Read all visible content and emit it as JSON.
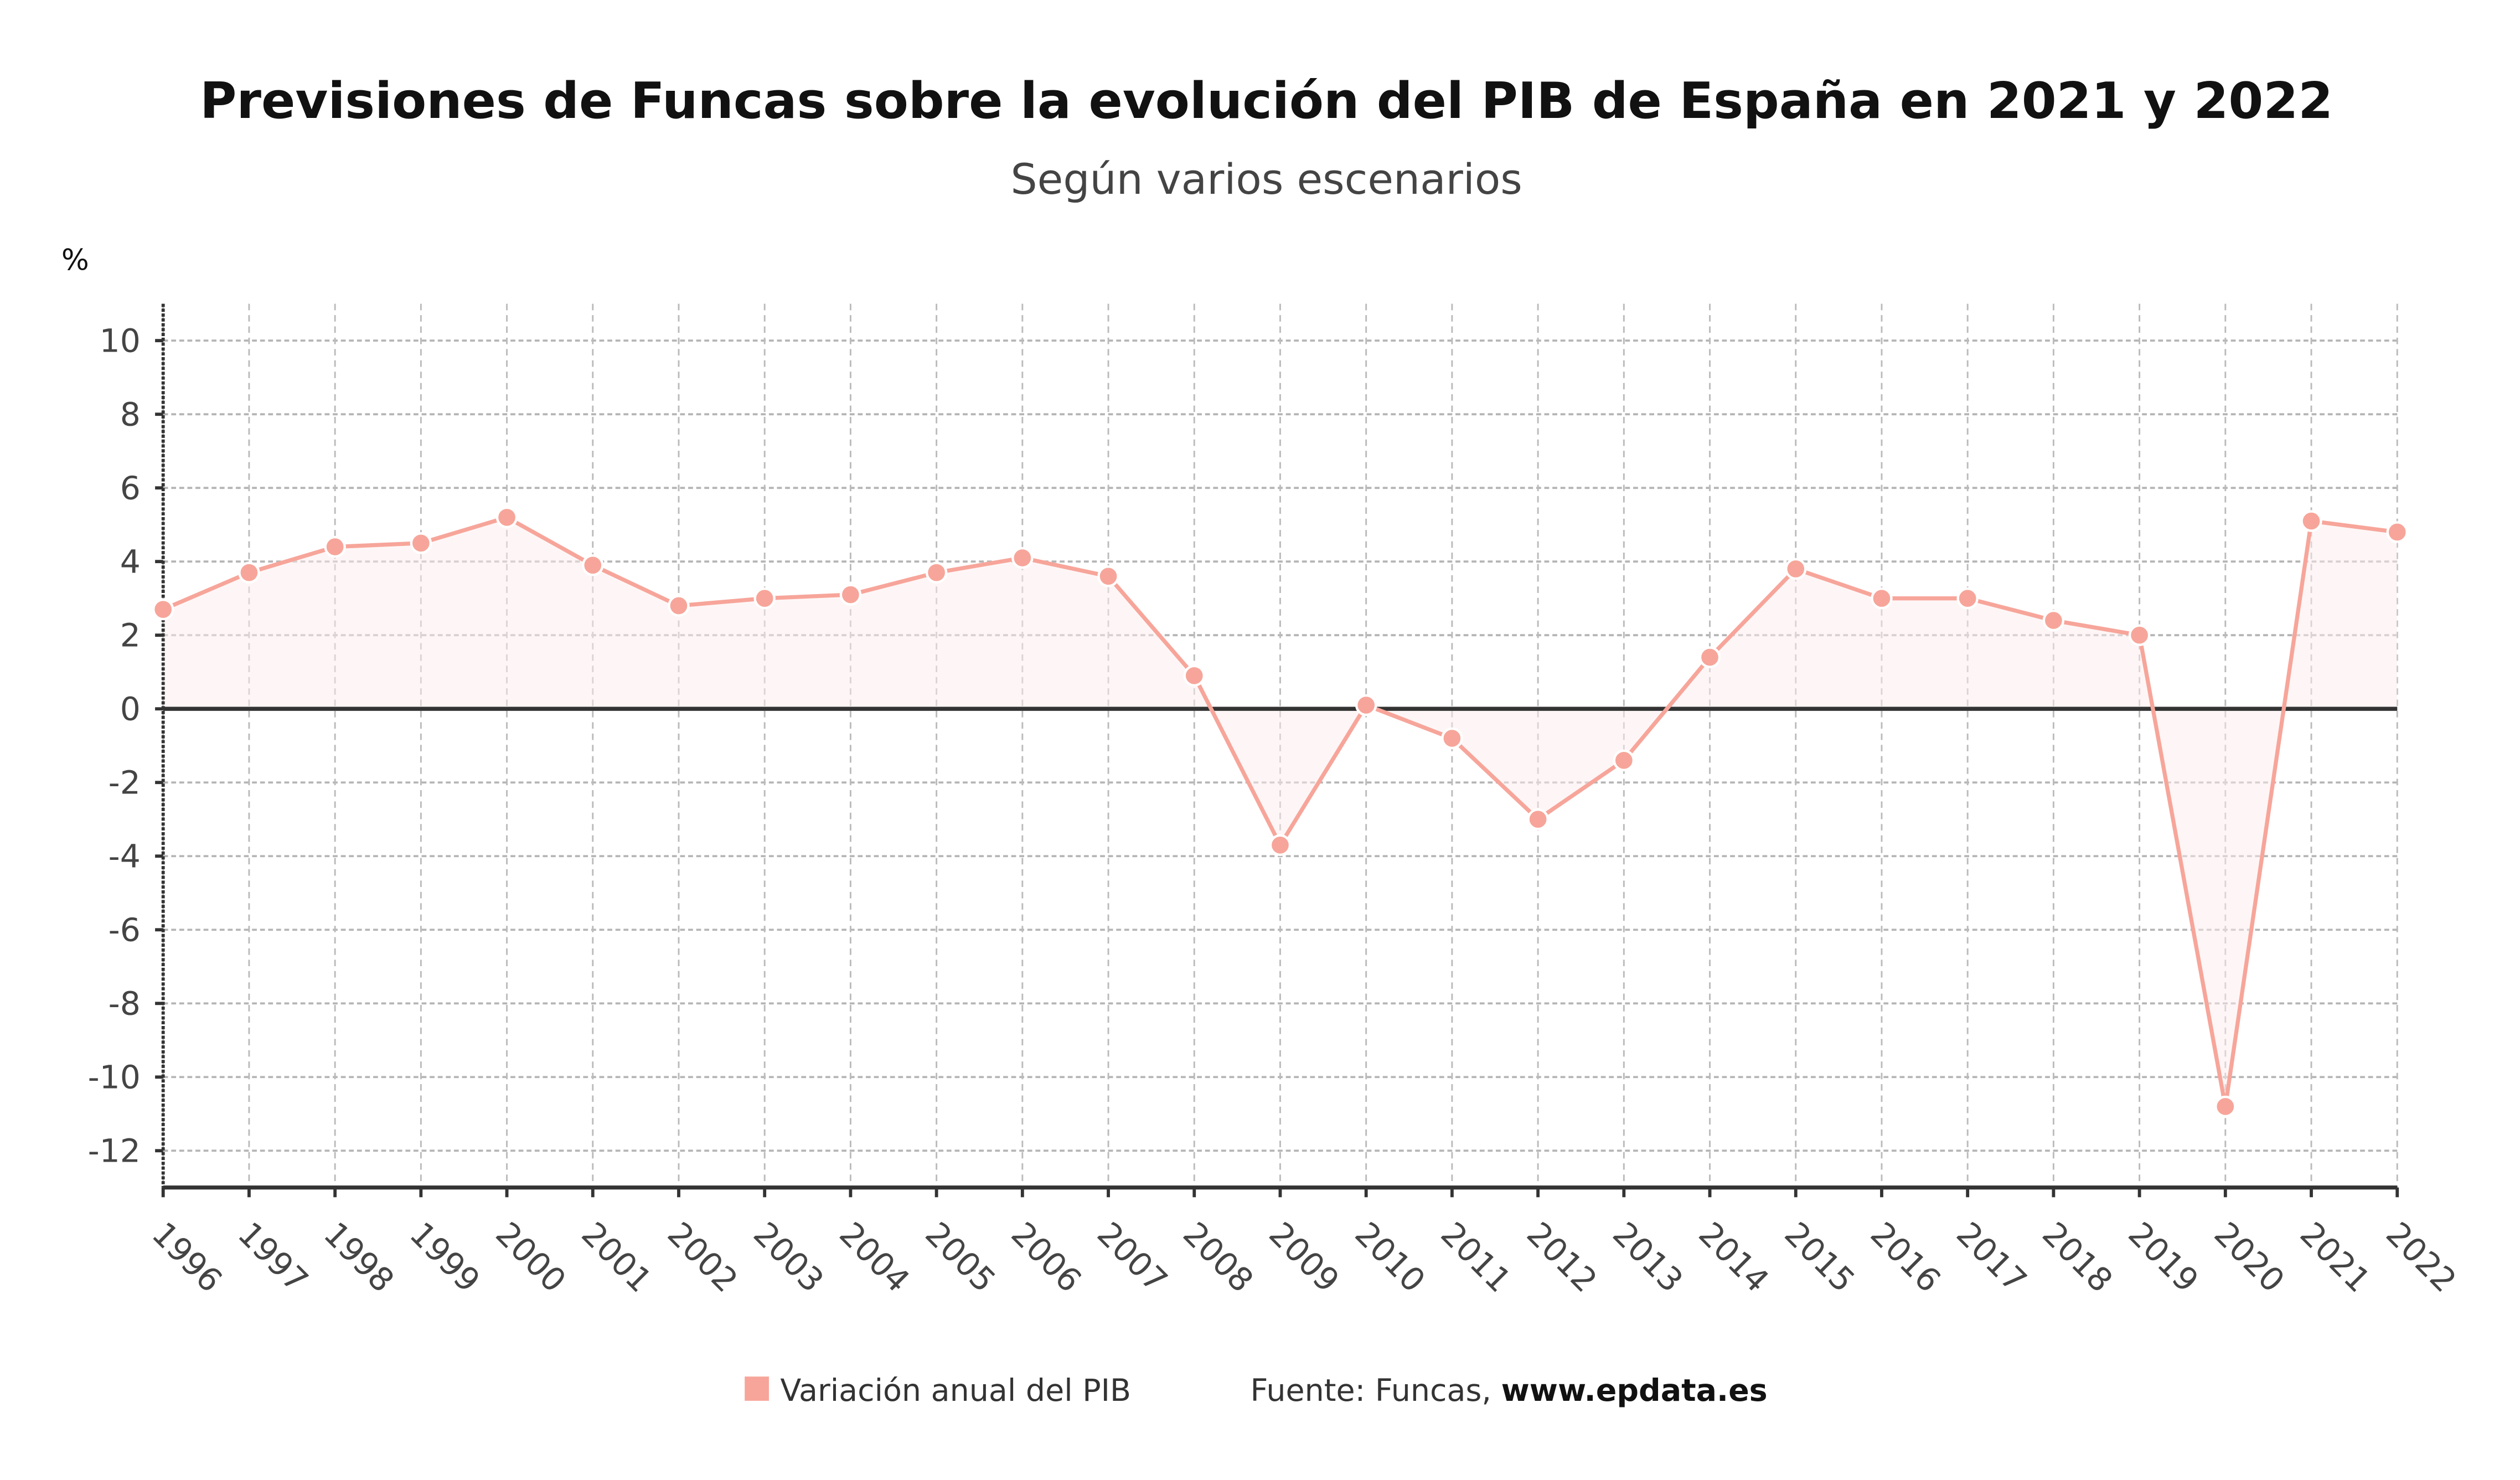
{
  "chart_data": {
    "type": "line",
    "title": "Previsiones de Funcas sobre la evolución del PIB de España en 2021 y 2022",
    "subtitle": "Según varios escenarios",
    "ylabel": "%",
    "xlabel": "",
    "ylim": [
      -13,
      11
    ],
    "yticks": [
      10,
      8,
      6,
      4,
      2,
      0,
      -2,
      -4,
      -6,
      -8,
      -10,
      -12
    ],
    "grid": true,
    "categories": [
      "1996",
      "1997",
      "1998",
      "1999",
      "2000",
      "2001",
      "2002",
      "2003",
      "2004",
      "2005",
      "2006",
      "2007",
      "2008",
      "2009",
      "2010",
      "2011",
      "2012",
      "2013",
      "2014",
      "2015",
      "2016",
      "2017",
      "2018",
      "2019",
      "2020",
      "2021",
      "2022"
    ],
    "series": [
      {
        "name": "Variación anual del PIB",
        "color": "#f7a59a",
        "values": [
          2.7,
          3.7,
          4.4,
          4.5,
          5.2,
          3.9,
          2.8,
          3.0,
          3.1,
          3.7,
          4.1,
          3.6,
          0.9,
          -3.7,
          0.1,
          -0.8,
          -3.0,
          -1.4,
          1.4,
          3.8,
          3.0,
          3.0,
          2.4,
          2.0,
          -10.8,
          5.1,
          4.8
        ]
      }
    ],
    "legend_position": "bottom",
    "source_label": "Fuente: Funcas, ",
    "source_site": "www.epdata.es"
  }
}
